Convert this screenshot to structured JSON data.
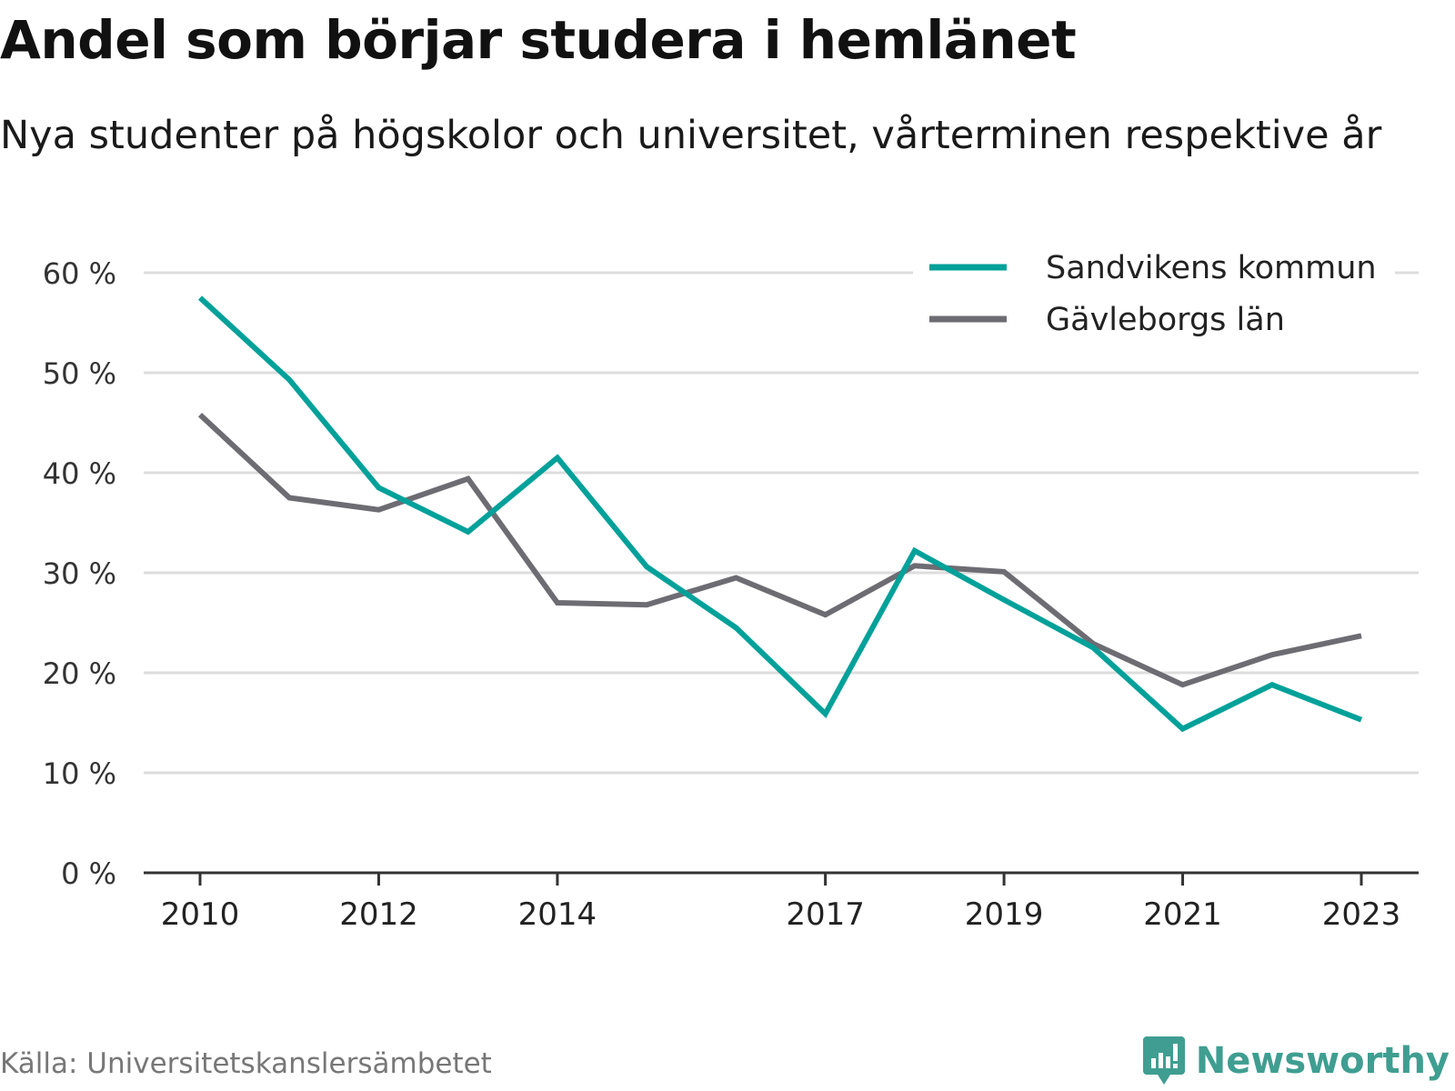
{
  "header": {
    "title": "Andel som börjar studera i hemlänet",
    "subtitle": "Nya studenter på högskolor och universitet, vårterminen respektive år"
  },
  "footer": {
    "source": "Källa: Universitetskanslersämbetet",
    "brand": "Newsworthy",
    "brand_icon": "newsworthy-logo-icon"
  },
  "colors": {
    "sandviken": "#00a19a",
    "gavleborg": "#6e6c73",
    "grid": "#dddddd",
    "axis": "#333333",
    "brand": "#3f9e91"
  },
  "chart_data": {
    "type": "line",
    "x": [
      2010,
      2011,
      2012,
      2013,
      2014,
      2015,
      2016,
      2017,
      2018,
      2019,
      2020,
      2021,
      2022,
      2023
    ],
    "x_tick_labels": [
      "2010",
      "2012",
      "2014",
      "2017",
      "2019",
      "2021",
      "2023"
    ],
    "y_tick_labels": [
      "0 %",
      "10 %",
      "20 %",
      "30 %",
      "40 %",
      "50 %",
      "60 %"
    ],
    "ylim": [
      0,
      60
    ],
    "grid": true,
    "legend_position": "top-right",
    "series": [
      {
        "name": "Sandvikens kommun",
        "values": [
          57.5,
          49.3,
          38.5,
          34.1,
          41.5,
          30.6,
          24.5,
          15.9,
          32.2,
          27.3,
          22.5,
          14.4,
          18.8,
          15.3
        ]
      },
      {
        "name": "Gävleborgs län",
        "values": [
          45.8,
          37.5,
          36.3,
          39.4,
          27.0,
          26.8,
          29.5,
          25.8,
          30.7,
          30.1,
          22.9,
          18.8,
          21.8,
          23.7
        ]
      }
    ]
  }
}
